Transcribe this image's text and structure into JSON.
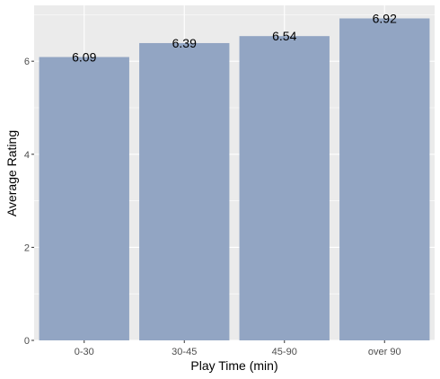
{
  "chart_data": {
    "type": "bar",
    "categories": [
      "0-30",
      "30-45",
      "45-90",
      "over 90"
    ],
    "values": [
      6.09,
      6.39,
      6.54,
      6.92
    ],
    "data_labels": [
      "6.09",
      "6.39",
      "6.54",
      "6.92"
    ],
    "title": "",
    "xlabel": "Play Time (min)",
    "ylabel": "Average Rating",
    "ylim": [
      0,
      7.2
    ],
    "yticks": [
      0,
      2,
      4,
      6
    ],
    "grid": true,
    "colors": {
      "bar": "#92a5c3",
      "panel": "#ebebeb",
      "grid": "#ffffff"
    }
  }
}
